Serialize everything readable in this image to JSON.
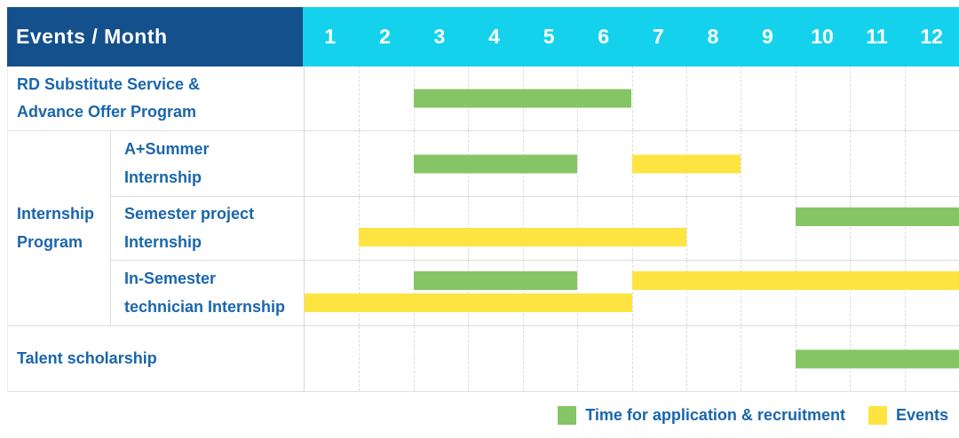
{
  "header": {
    "title": "Events / Month",
    "months": [
      "1",
      "2",
      "3",
      "4",
      "5",
      "6",
      "7",
      "8",
      "9",
      "10",
      "11",
      "12"
    ]
  },
  "colors": {
    "header_bg": "#14508B",
    "months_bg": "#15D2EC",
    "header_text": "#FFFFFF",
    "label_text": "#1A66AD",
    "bar_green": "#85C565",
    "bar_yellow": "#FDE440",
    "row_line": "#DEDEDE",
    "grid_dash": "#DCDCDC"
  },
  "chart_data": {
    "type": "bar",
    "subtype": "gantt-schedule",
    "title": "Events / Month",
    "x_axis": {
      "label": "Month",
      "ticks": [
        "1",
        "2",
        "3",
        "4",
        "5",
        "6",
        "7",
        "8",
        "9",
        "10",
        "11",
        "12"
      ],
      "range": [
        1,
        12
      ],
      "grid": "dashed-vertical"
    },
    "legend_position": "bottom-right",
    "rows": [
      {
        "group": null,
        "label": "RD Substitute Service &\nAdvance Offer Program",
        "bars": [
          {
            "series": "application",
            "start_month": 3,
            "end_month": 6,
            "line": "center"
          }
        ]
      },
      {
        "group": "Internship\nProgram",
        "label": "A+Summer\nInternship",
        "bars": [
          {
            "series": "application",
            "start_month": 3,
            "end_month": 5,
            "line": "center"
          },
          {
            "series": "events",
            "start_month": 7,
            "end_month": 8,
            "line": "center"
          }
        ]
      },
      {
        "group": "Internship\nProgram",
        "label": "Semester project\nInternship",
        "bars": [
          {
            "series": "application",
            "start_month": 10,
            "end_month": 12,
            "line": "top"
          },
          {
            "series": "events",
            "start_month": 2,
            "end_month": 7,
            "line": "bottom"
          }
        ]
      },
      {
        "group": "Internship\nProgram",
        "label": "In-Semester\ntechnician Internship",
        "bars": [
          {
            "series": "application",
            "start_month": 3,
            "end_month": 5,
            "line": "top"
          },
          {
            "series": "events",
            "start_month": 7,
            "end_month": 12,
            "line": "top"
          },
          {
            "series": "events",
            "start_month": 1,
            "end_month": 6,
            "line": "bottom"
          }
        ]
      },
      {
        "group": null,
        "label": "Talent scholarship",
        "bars": [
          {
            "series": "application",
            "start_month": 10,
            "end_month": 12,
            "line": "center"
          }
        ]
      }
    ],
    "legend": [
      {
        "series": "application",
        "label": "Time for application & recruitment",
        "color": "#85C565"
      },
      {
        "series": "events",
        "label": "Events",
        "color": "#FDE440"
      }
    ]
  }
}
